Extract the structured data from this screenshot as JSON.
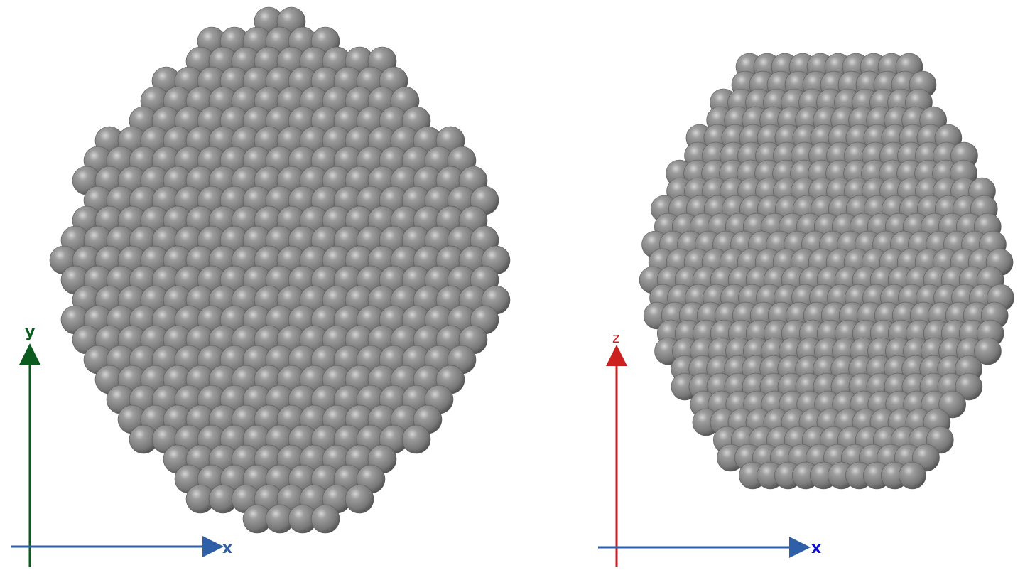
{
  "panels": [
    {
      "name": "left",
      "shape": "rhombic-dodecahedron",
      "vertical_axis": {
        "label": "y",
        "color": "#0b5a1e"
      },
      "horizontal_axis": {
        "label": "x",
        "color": "#2f5fa6",
        "label_color": "#2f5fa6"
      }
    },
    {
      "name": "right",
      "shape": "barrel",
      "vertical_axis": {
        "label": "z",
        "color": "#cc1f1f"
      },
      "horizontal_axis": {
        "label": "x",
        "color": "#2f5fa6",
        "label_color": "#1010cc"
      }
    }
  ],
  "atom_color": "#7f7f7f",
  "background": "#ffffff"
}
